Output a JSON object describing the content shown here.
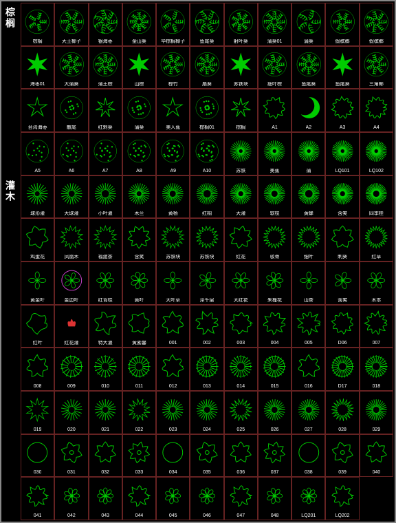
{
  "sidebar": {
    "categories": [
      "棕榈",
      "灌木"
    ]
  },
  "grid": {
    "cols": 11,
    "rows": 14,
    "stroke_color": "#00cc00",
    "border_color": "#662222",
    "background": "#000000",
    "label_color": "#ffffff",
    "label_fontsize": 7,
    "cells": [
      {
        "label": "棕榈",
        "s": 0
      },
      {
        "label": "大王椰子",
        "s": 1
      },
      {
        "label": "银海枣",
        "s": 2
      },
      {
        "label": "金山葵",
        "s": 3
      },
      {
        "label": "华棕榈椰子",
        "s": 4
      },
      {
        "label": "鱼尾葵",
        "s": 5
      },
      {
        "label": "射叶葵",
        "s": 6
      },
      {
        "label": "蒲葵01",
        "s": 7
      },
      {
        "label": "蒲葵",
        "s": 8
      },
      {
        "label": "假槟榔",
        "s": 9
      },
      {
        "label": "假槟榔",
        "s": 10
      },
      {
        "label": "海枣01",
        "s": 11
      },
      {
        "label": "大蒲葵",
        "s": 12
      },
      {
        "label": "蒲王棕",
        "s": 13
      },
      {
        "label": "山棕",
        "s": 14
      },
      {
        "label": "棕竹",
        "s": 15
      },
      {
        "label": "扇葵",
        "s": 16
      },
      {
        "label": "苏铁块",
        "s": 17
      },
      {
        "label": "细叶棕",
        "s": 18
      },
      {
        "label": "鱼尾葵",
        "s": 19
      },
      {
        "label": "鱼尾葵",
        "s": 20
      },
      {
        "label": "三角椰",
        "s": 21
      },
      {
        "label": "台湾海枣",
        "s": 22
      },
      {
        "label": "散尾",
        "s": 23
      },
      {
        "label": "红刺葵",
        "s": 24
      },
      {
        "label": "蒲葵",
        "s": 25
      },
      {
        "label": "美人蕉",
        "s": 26
      },
      {
        "label": "棕榈01",
        "s": 27
      },
      {
        "label": "棕榈",
        "s": 28
      },
      {
        "label": "A1",
        "s": 29
      },
      {
        "label": "A2",
        "s": 30
      },
      {
        "label": "A3",
        "s": 31
      },
      {
        "label": "A4",
        "s": 32
      },
      {
        "label": "A5",
        "s": 33
      },
      {
        "label": "A6",
        "s": 34
      },
      {
        "label": "A7",
        "s": 35
      },
      {
        "label": "A8",
        "s": 36
      },
      {
        "label": "A9",
        "s": 37
      },
      {
        "label": "A10",
        "s": 38
      },
      {
        "label": "苏铁",
        "s": 39
      },
      {
        "label": "美蕉",
        "s": 40
      },
      {
        "label": "蒲",
        "s": 41
      },
      {
        "label": "LQ101",
        "s": 42
      },
      {
        "label": "LQ102",
        "s": 43
      },
      {
        "label": "球形灌",
        "s": 44
      },
      {
        "label": "大球灌",
        "s": 45
      },
      {
        "label": "小叶灌",
        "s": 46
      },
      {
        "label": "木兰",
        "s": 47
      },
      {
        "label": "黄杨",
        "s": 48
      },
      {
        "label": "红桐",
        "s": 49
      },
      {
        "label": "大灌",
        "s": 50
      },
      {
        "label": "软枝",
        "s": 51
      },
      {
        "label": "黄蝉",
        "s": 52
      },
      {
        "label": "含笑",
        "s": 53
      },
      {
        "label": "四季桂",
        "s": 54
      },
      {
        "label": "鸡蛋花",
        "s": 55
      },
      {
        "label": "凤凰木",
        "s": 56
      },
      {
        "label": "福建茶",
        "s": 57
      },
      {
        "label": "含笑",
        "s": 58
      },
      {
        "label": "苏铁块",
        "s": 59
      },
      {
        "label": "苏铁块",
        "s": 60
      },
      {
        "label": "红花",
        "s": 61
      },
      {
        "label": "驳骨",
        "s": 62
      },
      {
        "label": "细叶",
        "s": 63
      },
      {
        "label": "刺葵",
        "s": 64
      },
      {
        "label": "红草",
        "s": 65
      },
      {
        "label": "黄金叶",
        "s": 66
      },
      {
        "label": "金边叶",
        "s": 67
      },
      {
        "label": "红背桂",
        "s": 68
      },
      {
        "label": "黄叶",
        "s": 69
      },
      {
        "label": "大叶草",
        "s": 70
      },
      {
        "label": "泽千层",
        "s": 71
      },
      {
        "label": "大红花",
        "s": 72
      },
      {
        "label": "朱槿花",
        "s": 73
      },
      {
        "label": "山茶",
        "s": 74
      },
      {
        "label": "含笑",
        "s": 75
      },
      {
        "label": "木本",
        "s": 76
      },
      {
        "label": "红叶",
        "s": 77
      },
      {
        "label": "红花灌",
        "s": 78
      },
      {
        "label": "特大灌",
        "s": 79
      },
      {
        "label": "黄素馨",
        "s": 80
      },
      {
        "label": "001",
        "s": 81
      },
      {
        "label": "002",
        "s": 82
      },
      {
        "label": "003",
        "s": 83
      },
      {
        "label": "004",
        "s": 84
      },
      {
        "label": "005",
        "s": 85
      },
      {
        "label": "D06",
        "s": 86
      },
      {
        "label": "007",
        "s": 87
      },
      {
        "label": "008",
        "s": 88
      },
      {
        "label": "009",
        "s": 89
      },
      {
        "label": "010",
        "s": 90
      },
      {
        "label": "011",
        "s": 91
      },
      {
        "label": "012",
        "s": 92
      },
      {
        "label": "013",
        "s": 93
      },
      {
        "label": "014",
        "s": 94
      },
      {
        "label": "015",
        "s": 95
      },
      {
        "label": "016",
        "s": 96
      },
      {
        "label": "D17",
        "s": 97
      },
      {
        "label": "018",
        "s": 98
      },
      {
        "label": "019",
        "s": 99
      },
      {
        "label": "020",
        "s": 100
      },
      {
        "label": "021",
        "s": 101
      },
      {
        "label": "022",
        "s": 102
      },
      {
        "label": "023",
        "s": 103
      },
      {
        "label": "024",
        "s": 104
      },
      {
        "label": "025",
        "s": 105
      },
      {
        "label": "026",
        "s": 106
      },
      {
        "label": "027",
        "s": 107
      },
      {
        "label": "028",
        "s": 108
      },
      {
        "label": "029",
        "s": 109
      },
      {
        "label": "030",
        "s": 110
      },
      {
        "label": "031",
        "s": 111
      },
      {
        "label": "032",
        "s": 112
      },
      {
        "label": "033",
        "s": 113
      },
      {
        "label": "034",
        "s": 114
      },
      {
        "label": "035",
        "s": 115
      },
      {
        "label": "036",
        "s": 116
      },
      {
        "label": "037",
        "s": 117
      },
      {
        "label": "038",
        "s": 118
      },
      {
        "label": "039",
        "s": 119
      },
      {
        "label": "040",
        "s": 120
      },
      {
        "label": "041",
        "s": 121
      },
      {
        "label": "042",
        "s": 122
      },
      {
        "label": "043",
        "s": 123
      },
      {
        "label": "044",
        "s": 124
      },
      {
        "label": "045",
        "s": 125
      },
      {
        "label": "046",
        "s": 126
      },
      {
        "label": "047",
        "s": 127
      },
      {
        "label": "048",
        "s": 128
      },
      {
        "label": "LQ201",
        "s": 129
      },
      {
        "label": "LQ202",
        "s": 130
      }
    ]
  }
}
